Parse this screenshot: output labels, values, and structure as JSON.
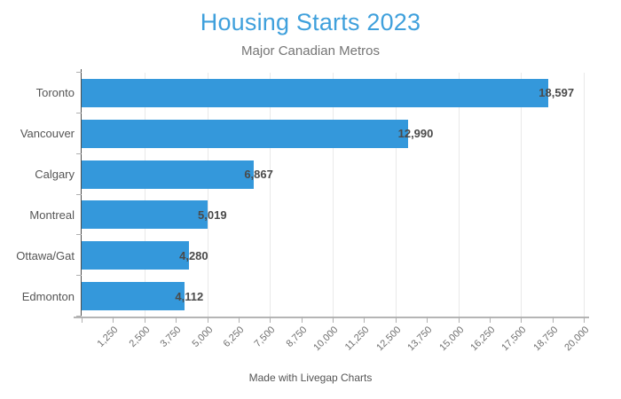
{
  "title": "Housing Starts 2023",
  "subtitle": "Major Canadian Metros",
  "footer": "Made with Livegap Charts",
  "colors": {
    "bar": "#3498db",
    "title": "#3fa0dc",
    "subtitle": "#757575",
    "category_label": "#555555",
    "value_label": "#4a4a4a",
    "gridline": "#e9e9e9",
    "x_axis_line": "#b5b5b5",
    "y_axis_line": "#4d4d4d",
    "tick": "#b0b0b0",
    "tick_label": "#707070",
    "footer": "#555555",
    "background": "#ffffff"
  },
  "chart_data": {
    "type": "bar",
    "orientation": "horizontal",
    "title": "Housing Starts 2023",
    "subtitle": "Major Canadian Metros",
    "categories": [
      "Toronto",
      "Vancouver",
      "Calgary",
      "Montreal",
      "Ottawa/Gat",
      "Edmonton"
    ],
    "values": [
      18597,
      12990,
      6867,
      5019,
      4280,
      4112
    ],
    "value_labels": [
      "18,597",
      "12,990",
      "6,867",
      "5,019",
      "4,280",
      "4,112"
    ],
    "xlim": [
      0,
      20000
    ],
    "x_ticks": [
      "1,250",
      "2,500",
      "3,750",
      "5,000",
      "6,250",
      "7,500",
      "8,750",
      "10,000",
      "11,250",
      "12,500",
      "13,750",
      "15,000",
      "16,250",
      "17,500",
      "18,750",
      "20,000"
    ],
    "x_tick_interval": 1250,
    "gridline_interval": 2500,
    "grid": "vertical-only",
    "legend": false,
    "x_tick_label_rotation_deg": -45
  }
}
